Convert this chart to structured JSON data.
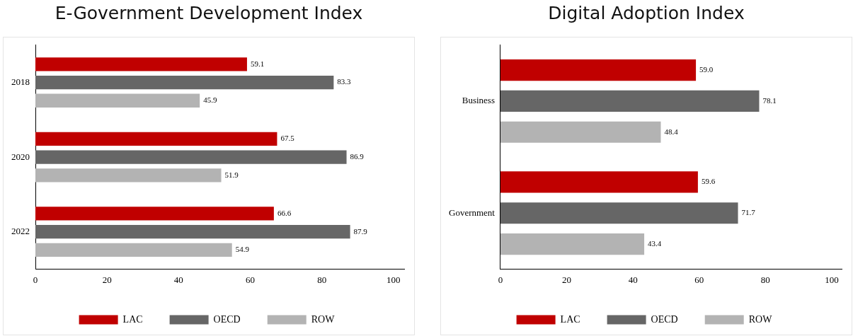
{
  "chart_data": [
    {
      "type": "bar",
      "orientation": "horizontal",
      "title": "E-Government Development Index",
      "categories": [
        "2018",
        "2020",
        "2022"
      ],
      "series": [
        {
          "name": "LAC",
          "color": "#c00000",
          "values": [
            59.1,
            67.5,
            66.6
          ],
          "value_labels": [
            "59.1",
            "67.5",
            "66.6"
          ]
        },
        {
          "name": "OECD",
          "color": "#666666",
          "values": [
            83.3,
            86.9,
            87.9
          ],
          "value_labels": [
            "83.3",
            "86.9",
            "87.9"
          ]
        },
        {
          "name": "ROW",
          "color": "#b3b3b3",
          "values": [
            45.9,
            51.9,
            54.9
          ],
          "value_labels": [
            "45.9",
            "51.9",
            "54.9"
          ]
        }
      ],
      "xlim": [
        0,
        103
      ],
      "xticks": [
        0,
        20,
        40,
        60,
        80,
        100
      ],
      "grid": false,
      "legend": "bottom"
    },
    {
      "type": "bar",
      "orientation": "horizontal",
      "title": "Digital Adoption Index",
      "categories": [
        "Business",
        "Government"
      ],
      "series": [
        {
          "name": "LAC",
          "color": "#c00000",
          "values": [
            59.0,
            59.6
          ],
          "value_labels": [
            "59.0",
            "59.6"
          ]
        },
        {
          "name": "OECD",
          "color": "#666666",
          "values": [
            78.1,
            71.7
          ],
          "value_labels": [
            "78.1",
            "71.7"
          ]
        },
        {
          "name": "ROW",
          "color": "#b3b3b3",
          "values": [
            48.4,
            43.4
          ],
          "value_labels": [
            "48.4",
            "43.4"
          ]
        }
      ],
      "xlim": [
        0,
        103
      ],
      "xticks": [
        0,
        20,
        40,
        60,
        80,
        100
      ],
      "grid": false,
      "legend": "bottom"
    }
  ]
}
